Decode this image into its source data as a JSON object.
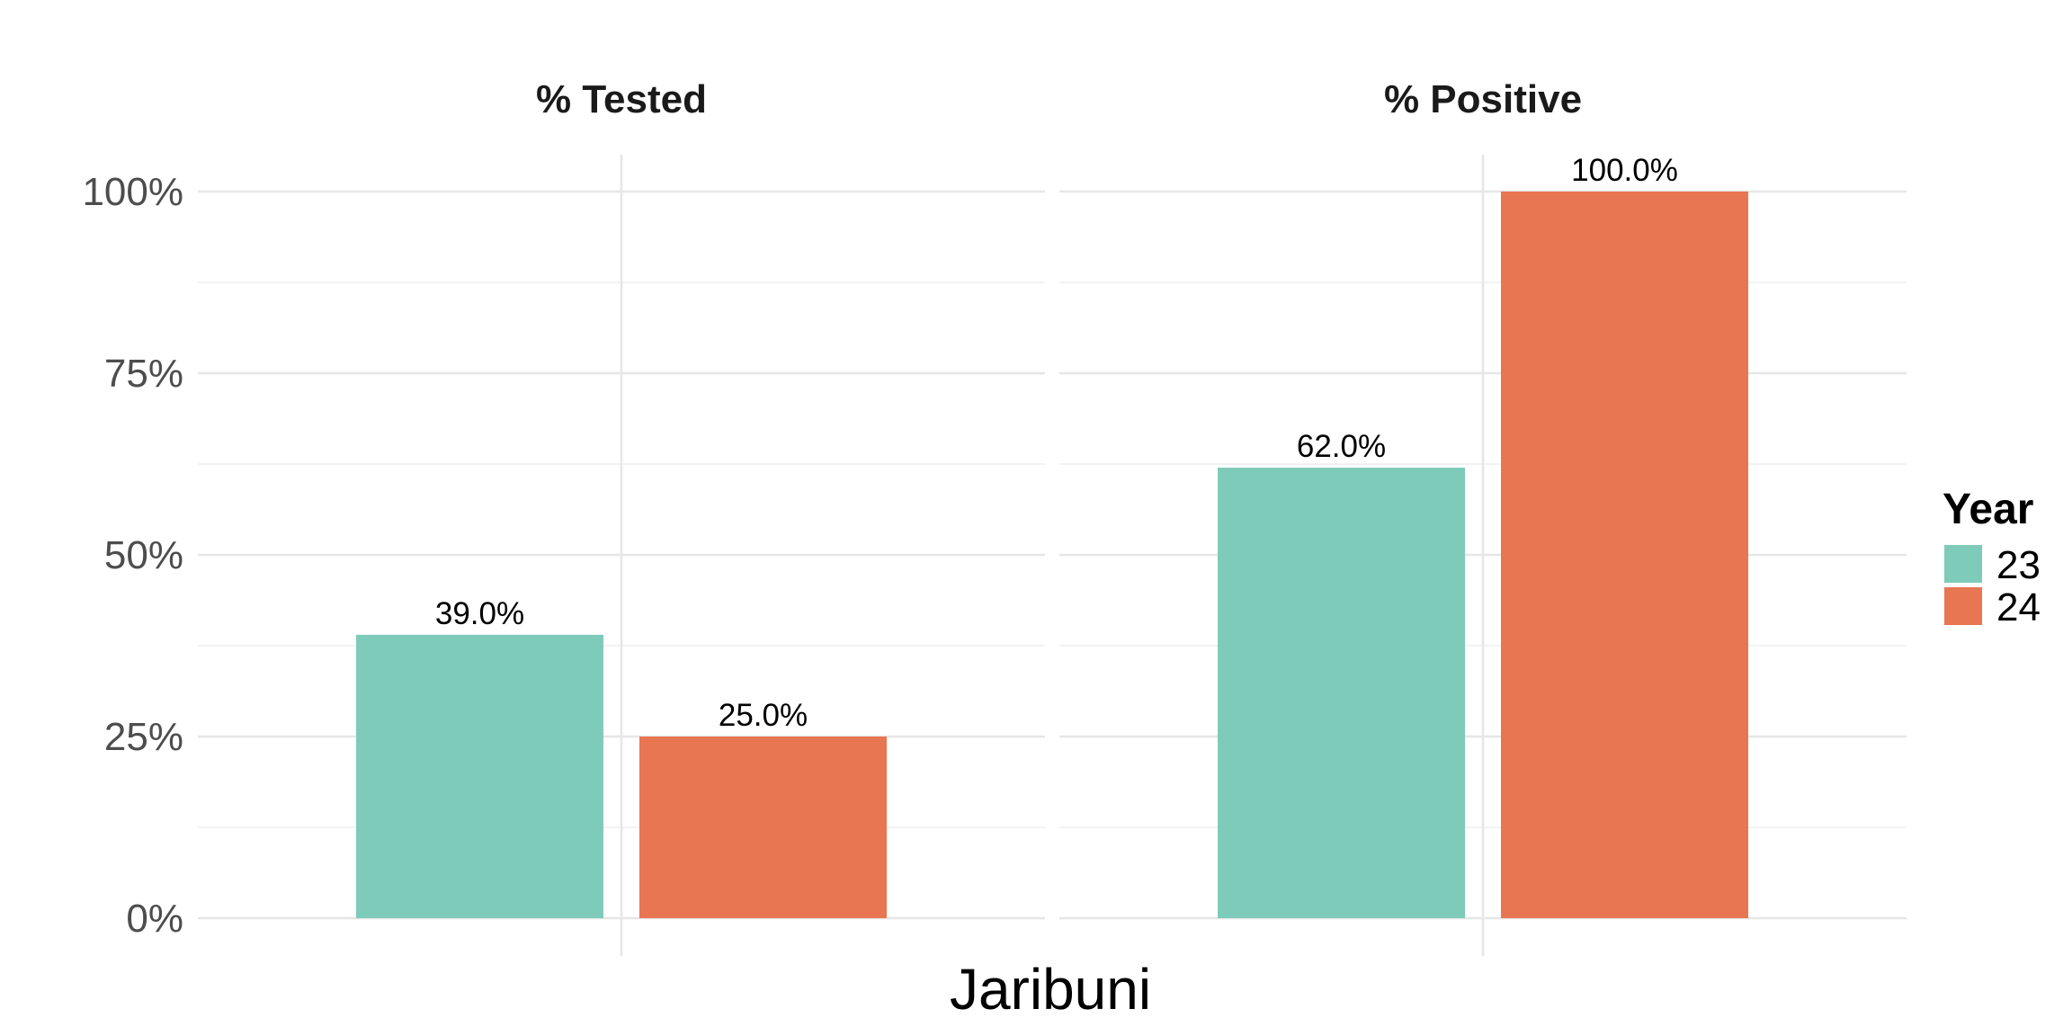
{
  "chart_data": {
    "type": "bar",
    "facets": [
      "% Tested",
      "% Positive"
    ],
    "categories": [
      "Jaribuni"
    ],
    "xlabel": "Jaribuni",
    "ylabel": "",
    "ylim": [
      0,
      100
    ],
    "yticks": [
      "0%",
      "25%",
      "50%",
      "75%",
      "100%"
    ],
    "grid": true,
    "legend": {
      "title": "Year",
      "position": "right",
      "entries": [
        "23",
        "24"
      ]
    },
    "series": [
      {
        "name": "23",
        "color": "#7fcbba",
        "values": {
          "% Tested": 39.0,
          "% Positive": 62.0
        },
        "labels": {
          "% Tested": "39.0%",
          "% Positive": "62.0%"
        }
      },
      {
        "name": "24",
        "color": "#e87652",
        "values": {
          "% Tested": 25.0,
          "% Positive": 100.0
        },
        "labels": {
          "% Tested": "25.0%",
          "% Positive": "100.0%"
        }
      }
    ]
  }
}
